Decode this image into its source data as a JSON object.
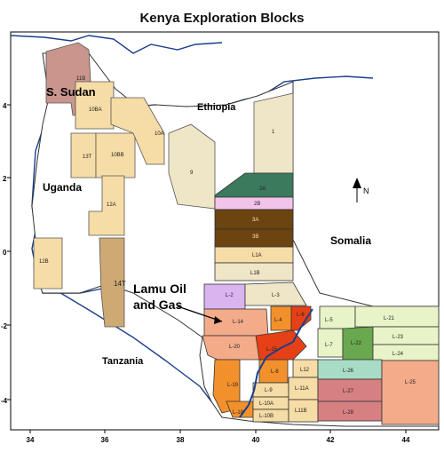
{
  "title": "Kenya Exploration Blocks",
  "country_labels": {
    "sudan": "S. Sudan",
    "ethiopia": "Ethiopia",
    "uganda": "Uganda",
    "somalia": "Somalia",
    "tanzania": "Tanzania"
  },
  "callout": {
    "line1": "Lamu Oil",
    "line2": "and Gas"
  },
  "axes": {
    "x_ticks": [
      "34",
      "36",
      "38",
      "40",
      "42",
      "44"
    ],
    "y_ticks": [
      "4",
      "2",
      "0",
      "-2",
      "-4"
    ]
  },
  "north_arrow_label": "N",
  "blocks": {
    "b11B": "11B",
    "b10A": "10A",
    "b10BA": "10BA",
    "b13T": "13T",
    "b10BB": "10BB",
    "b12A": "12A",
    "b12B": "12B",
    "b14T": "14T",
    "b9": "9",
    "b1": "1",
    "b2A": "2A",
    "b2B": "2B",
    "b3A": "3A",
    "b3B": "3B",
    "bL1A": "L1A",
    "bL1B": "L1B",
    "bL2": "L-2",
    "bL3": "L-3",
    "bL14": "L-14",
    "bL20": "L-20",
    "bL19": "L-19",
    "bL18": "L-18",
    "bL8": "L-8",
    "bL9": "L-9",
    "bL10A": "L-10A",
    "bL10B": "L-10B",
    "bL12": "L12",
    "bL11A": "L-11A",
    "bL11B": "L11B",
    "bL7": "L-7",
    "bL5": "L-5",
    "bL22": "L-22",
    "bL21": "L-21",
    "bL23": "L-23",
    "bL24": "L-24",
    "bL26": "L-26",
    "bL27": "L-27",
    "bL28": "L-28",
    "bL25": "L-25",
    "bL4": "L-4",
    "bL6": "L-6",
    "bL15": "L-15"
  },
  "colors": {
    "pale": "#f6dca6",
    "tan": "#efe6c7",
    "brown_dark": "#6b4410",
    "teal": "#3b7a5c",
    "pink": "#f2c4ec",
    "lavender": "#d9b4ef",
    "sudan_block": "#c9958c",
    "orange": "#f2912b",
    "light_green": "#e8f4c8",
    "green": "#6aa84f",
    "salmon": "#f3ab8a",
    "rose": "#d68082",
    "mint": "#a9dcc6",
    "red_orange": "#e64016",
    "river": "#1b3f8b",
    "boundary": "#1b3f8b"
  }
}
